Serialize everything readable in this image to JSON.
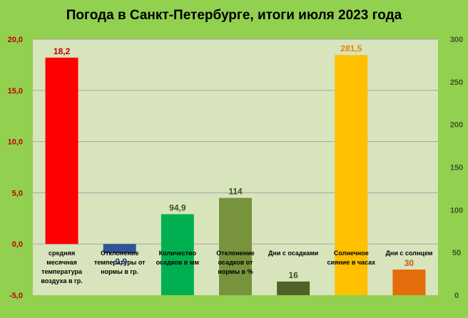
{
  "chart_data": {
    "type": "bar",
    "title": "Погода в Санкт-Петербурге, итоги июля 2023 года",
    "grid": true,
    "y_left": {
      "range": [
        -5,
        20
      ],
      "ticks": [
        "-5,0",
        "0,0",
        "5,0",
        "10,0",
        "15,0",
        "20,0"
      ],
      "color": "#c00000"
    },
    "y_right": {
      "range": [
        0,
        300
      ],
      "ticks": [
        "0",
        "50",
        "100",
        "150",
        "200",
        "250",
        "300"
      ],
      "color": "#385723"
    },
    "bars": [
      {
        "category": "средняя месячная температура воздуха в гр.",
        "value": 18.2,
        "label": "18,2",
        "axis": "left",
        "color": "#ff0000",
        "label_color": "#c00000"
      },
      {
        "category": "Отклонение температуры от нормы в гр.",
        "value": -0.9,
        "label": "-0,9",
        "axis": "left",
        "color": "#2f5597",
        "label_color": "#1f3e8a"
      },
      {
        "category": "Количество осадков в мм",
        "value": 94.9,
        "label": "94,9",
        "axis": "right",
        "color": "#00b050",
        "label_color": "#375623"
      },
      {
        "category": "Отклонение осадков от нормы в %",
        "value": 114,
        "label": "114",
        "axis": "right",
        "color": "#77933c",
        "label_color": "#375623"
      },
      {
        "category": "Дни с осадками",
        "value": 16,
        "label": "16",
        "axis": "right",
        "color": "#4f6228",
        "label_color": "#375623"
      },
      {
        "category": "Солнечное сияние в часах",
        "value": 281.5,
        "label": "281,5",
        "axis": "right",
        "color": "#ffc000",
        "label_color": "#e08a00"
      },
      {
        "category": "Дни с солнцем",
        "value": 30,
        "label": "30",
        "axis": "right",
        "color": "#e46c0a",
        "label_color": "#c55a11"
      }
    ],
    "category_lines": [
      [
        "средняя",
        "месячная",
        "температура",
        "воздуха в гр."
      ],
      [
        "Отклонение",
        "температуры от",
        "нормы в гр."
      ],
      [
        "Количество",
        "осадков в мм"
      ],
      [
        "Отклонение",
        "осадков от",
        "нормы в %"
      ],
      [
        "Дни с осадками"
      ],
      [
        "Солнечное",
        "сияние в часах"
      ],
      [
        "Дни с солнцем"
      ]
    ],
    "colors": {
      "background": "#92d050",
      "plot_area": "#d8e4bc",
      "gridline": "#a6a6a6"
    }
  }
}
